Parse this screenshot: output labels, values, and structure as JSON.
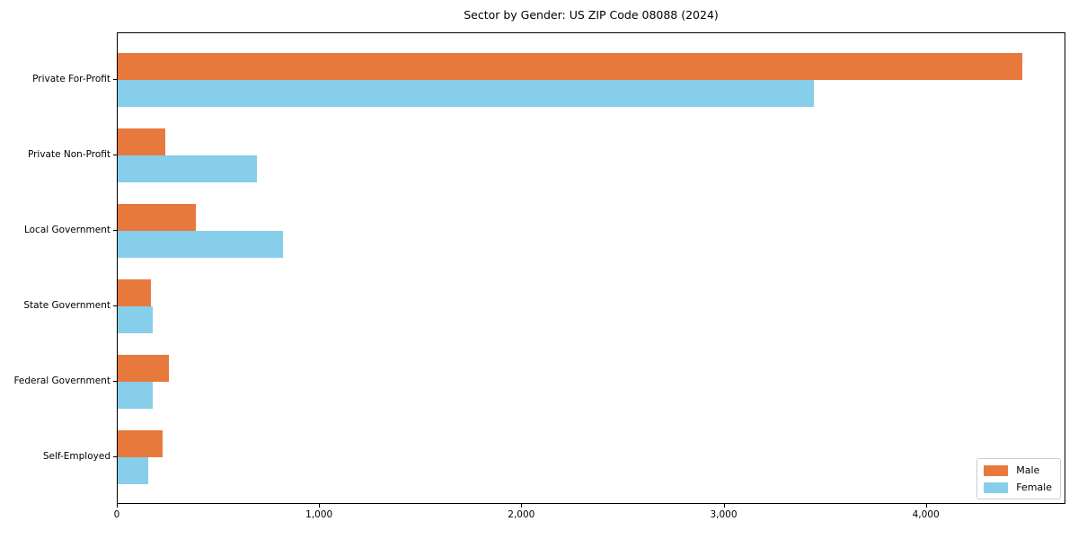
{
  "chart_data": {
    "type": "bar",
    "orientation": "horizontal",
    "title": "Sector by Gender: US ZIP Code 08088 (2024)",
    "categories": [
      "Private For-Profit",
      "Private Non-Profit",
      "Local Government",
      "State Government",
      "Federal Government",
      "Self-Employed"
    ],
    "series": [
      {
        "name": "Male",
        "color": "#E8793D",
        "values": [
          4470,
          235,
          385,
          165,
          255,
          220
        ]
      },
      {
        "name": "Female",
        "color": "#87CEEB",
        "values": [
          3440,
          690,
          815,
          175,
          175,
          150
        ]
      }
    ],
    "xlabel": "",
    "ylabel": "",
    "xlim": [
      0,
      4690
    ],
    "xticks": [
      0,
      1000,
      2000,
      3000,
      4000
    ],
    "xtick_labels": [
      "0",
      "1,000",
      "2,000",
      "3,000",
      "4,000"
    ],
    "grid": false,
    "legend": {
      "position": "lower right",
      "entries": [
        "Male",
        "Female"
      ]
    },
    "colors": {
      "male": "#E8793D",
      "female": "#87CEEB",
      "spine": "#000000",
      "background": "#ffffff"
    }
  }
}
